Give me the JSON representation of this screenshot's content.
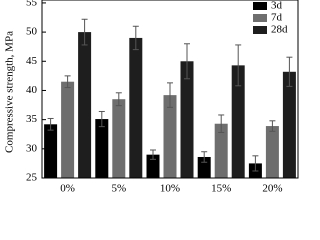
{
  "chart_data": {
    "type": "bar",
    "ylabel": "Compressive strength, MPa",
    "categories": [
      "0%",
      "5%",
      "10%",
      "15%",
      "20%"
    ],
    "series": [
      {
        "name": "3d",
        "color": "#000000",
        "values": [
          34.2,
          35.1,
          29.0,
          28.6,
          27.5
        ],
        "errors": [
          1.0,
          1.3,
          0.8,
          0.9,
          1.3
        ]
      },
      {
        "name": "7d",
        "color": "#6e6e6e",
        "values": [
          41.5,
          38.5,
          39.2,
          34.3,
          33.9
        ],
        "errors": [
          1.0,
          1.1,
          2.1,
          1.5,
          0.9
        ]
      },
      {
        "name": "28d",
        "color": "#1e1e1e",
        "values": [
          50.0,
          49.0,
          45.0,
          44.3,
          43.2
        ],
        "errors": [
          2.2,
          2.0,
          3.0,
          3.5,
          2.5
        ]
      }
    ],
    "ylim": [
      25,
      55.5
    ],
    "yticks": [
      25,
      30,
      35,
      40,
      45,
      50,
      55
    ],
    "legend": "top-right"
  }
}
